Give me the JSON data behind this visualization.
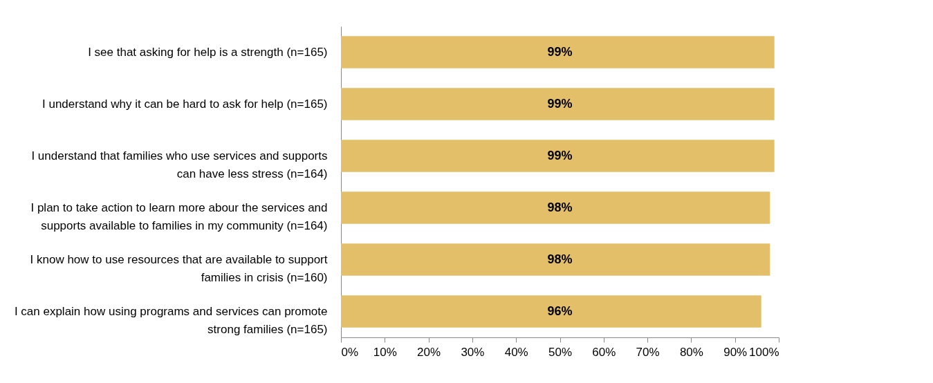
{
  "chart_data": {
    "type": "bar",
    "orientation": "horizontal",
    "categories": [
      "I see that asking for help is a strength (n=165)",
      "I understand why it can be hard to ask for help (n=165)",
      "I understand that families who use services and supports can have less stress (n=164)",
      "I plan to take action to learn more abour the services and supports available to families in my community (n=164)",
      "I know how to use resources that are available to support families in crisis (n=160)",
      "I can explain how using programs and services can promote strong families (n=165)"
    ],
    "values": [
      99,
      99,
      99,
      98,
      98,
      96
    ],
    "value_labels": [
      "99%",
      "99%",
      "99%",
      "98%",
      "98%",
      "96%"
    ],
    "color": "#e4bf6a",
    "xlim": [
      0,
      100
    ],
    "xticks": [
      {
        "value": 0,
        "label": "0%"
      },
      {
        "value": 10,
        "label": "10%"
      },
      {
        "value": 20,
        "label": "20%"
      },
      {
        "value": 30,
        "label": "30%"
      },
      {
        "value": 40,
        "label": "40%"
      },
      {
        "value": 50,
        "label": "50%"
      },
      {
        "value": 60,
        "label": "60%"
      },
      {
        "value": 70,
        "label": "70%"
      },
      {
        "value": 80,
        "label": "80%"
      },
      {
        "value": 90,
        "label": "90%"
      },
      {
        "value": 100,
        "label": "100%"
      }
    ],
    "grid": false
  }
}
